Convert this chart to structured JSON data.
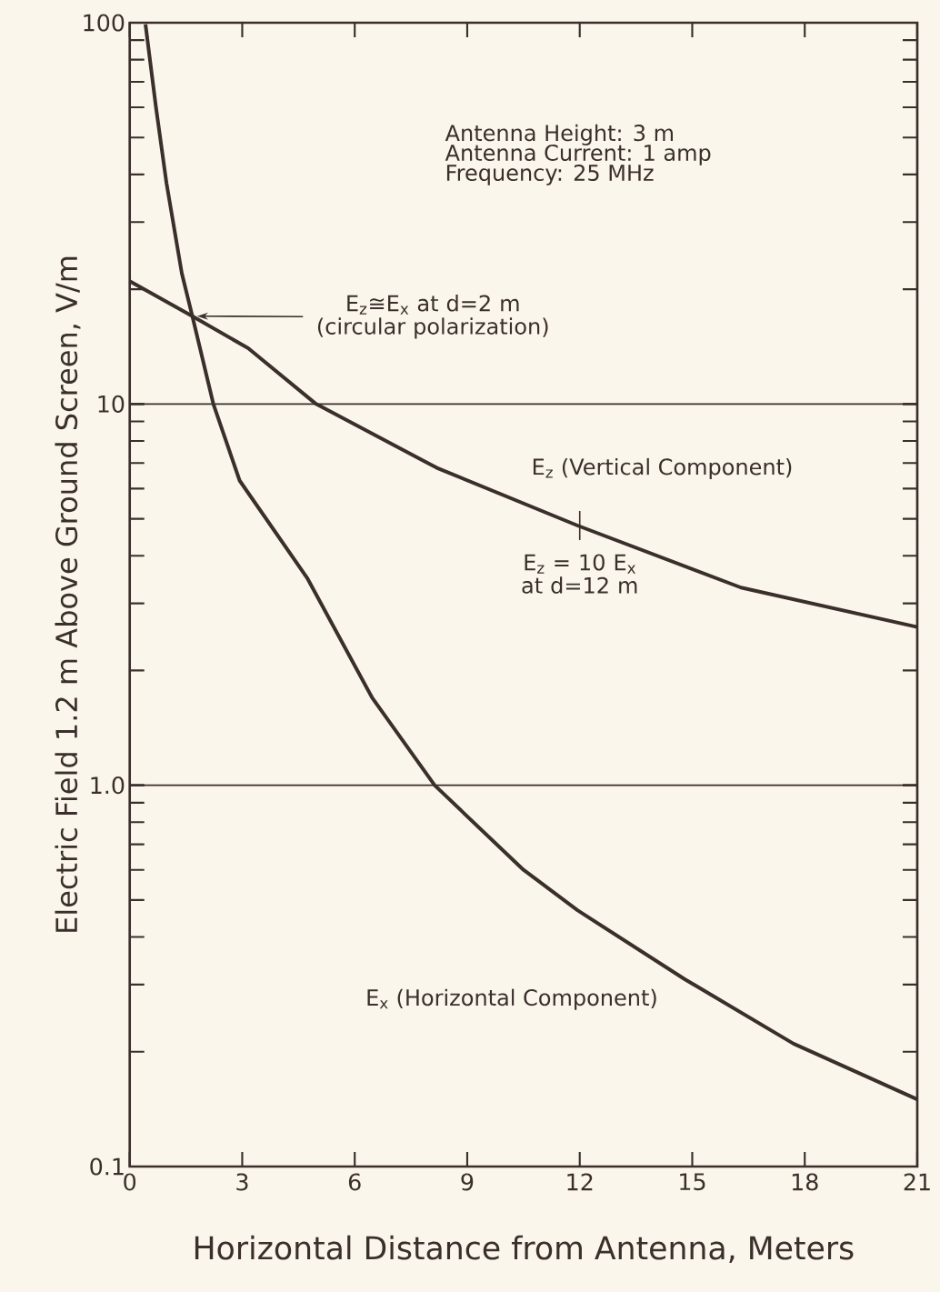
{
  "chart_data": {
    "type": "line",
    "xlabel": "Horizontal Distance from Antenna, Meters",
    "ylabel": "Electric Field 1.2 m Above Ground Screen, V/m",
    "log": "y",
    "xlim": [
      0,
      21
    ],
    "xticks": [
      0,
      3,
      6,
      9,
      12,
      15,
      18,
      21
    ],
    "ylim": [
      0.1,
      100
    ],
    "yticks": [
      {
        "value": 0.1,
        "label": "0.1"
      },
      {
        "value": 1,
        "label": "1.0"
      },
      10,
      100
    ],
    "grid": "y",
    "legend": false,
    "marker": "none",
    "line_style": "solid",
    "series": [
      {
        "name": "E$_{z}$ (Vertical Component)",
        "color": "#3a2f2b",
        "x": [
          0,
          1.67,
          3.16,
          4.97,
          8.19,
          11.94,
          16.3,
          21
        ],
        "values": [
          21,
          17,
          14,
          10,
          6.8,
          4.8,
          3.3,
          2.6
        ]
      },
      {
        "name": "E$_{x}$ (Horizontal Component)",
        "color": "#3a2f2b",
        "x": [
          0.42,
          0.7,
          0.98,
          1.39,
          1.67,
          2.23,
          2.93,
          4.73,
          6.46,
          8.13,
          10.5,
          11.94,
          14.8,
          17.7,
          21
        ],
        "values": [
          99,
          60,
          38,
          22,
          17,
          10,
          6.3,
          3.5,
          1.7,
          1.0,
          0.6,
          0.47,
          0.31,
          0.21,
          0.15
        ]
      }
    ],
    "annotations": [
      "Antenna Height:   3 m",
      "Antenna Current:   1 amp",
      "Frequency:   25 MHz",
      "E$_{z}$≅E$_{x}$ at d=2 m (circular polarization)",
      {
        "text": "E$_{z}$ = 10 E$_{x}$ at d=12 m",
        "x": 12,
        "y": 4.8
      }
    ]
  }
}
